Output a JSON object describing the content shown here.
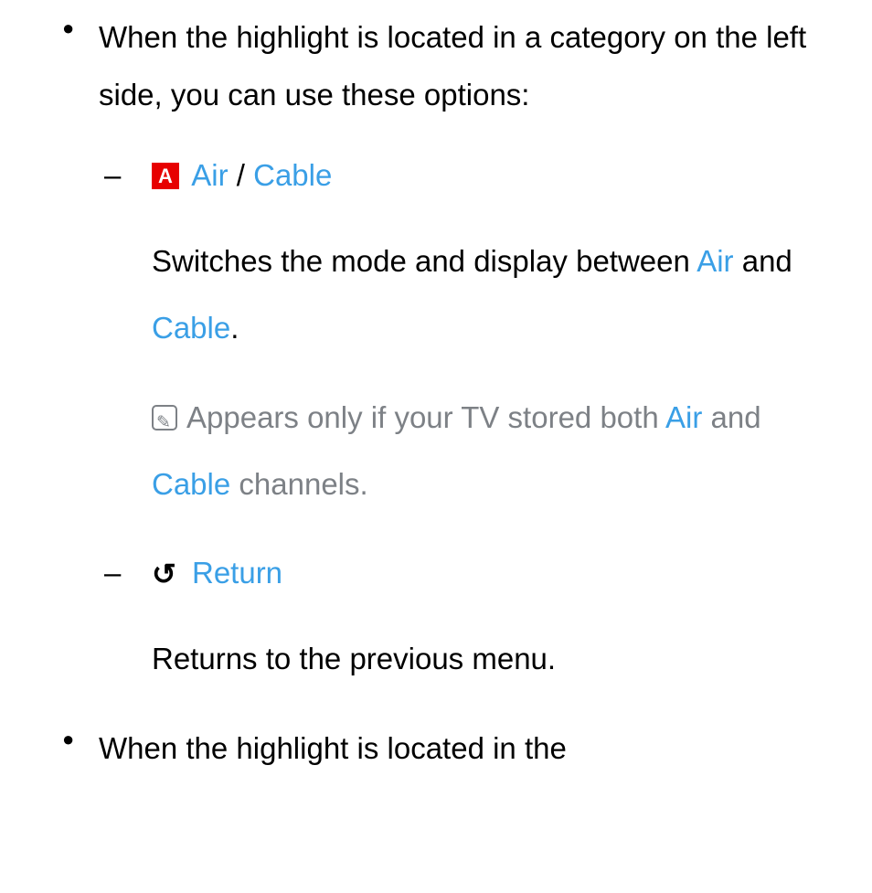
{
  "bullets": [
    {
      "intro": "When the highlight is located in a category on the left side, you can use these options:",
      "subitems": [
        {
          "badge": "A",
          "title_parts": {
            "air": "Air",
            "sep": "/",
            "cable": "Cable"
          },
          "desc_prefix": "Switches the mode and display between ",
          "desc_air": "Air",
          "desc_and": " and ",
          "desc_cable": "Cable",
          "desc_suffix": ".",
          "note_prefix": "Appears only if your TV stored both ",
          "note_air": "Air",
          "note_and": " and ",
          "note_cable": "Cable",
          "note_suffix": " channels."
        },
        {
          "return_label": "Return",
          "return_desc": "Returns to the previous menu."
        }
      ]
    },
    {
      "intro": "When the highlight is located in the"
    }
  ],
  "colors": {
    "link": "#3a9fe6",
    "badge_bg": "#e70000",
    "note_text": "#7d8186",
    "body_text": "#000000",
    "background": "#ffffff"
  }
}
